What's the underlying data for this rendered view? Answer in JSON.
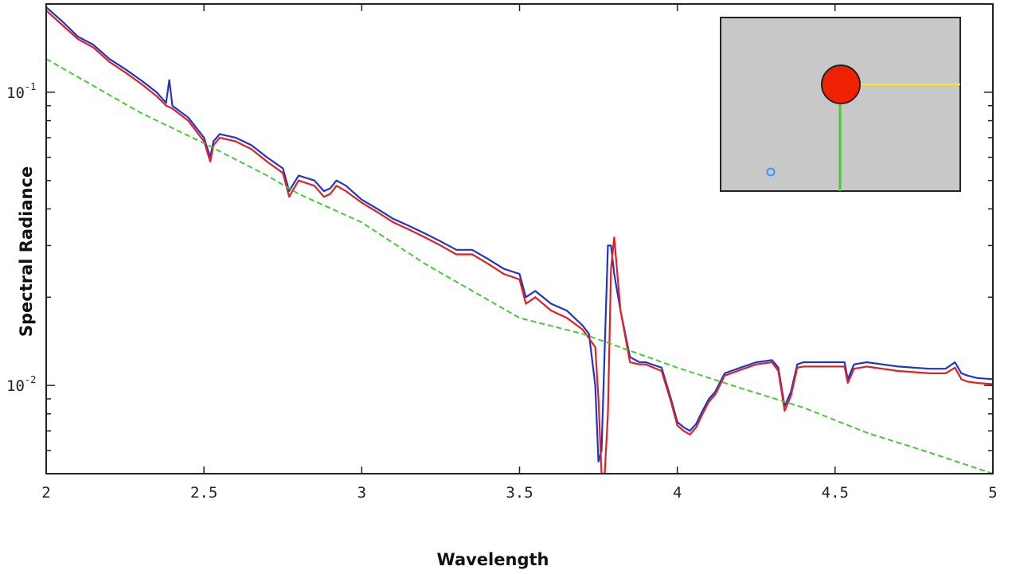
{
  "chart_data": {
    "type": "line",
    "xlabel": "Wavelength",
    "ylabel": "Spectral Radiance",
    "xlim": [
      2,
      5
    ],
    "ylim": [
      0.005,
      0.2
    ],
    "yscale": "log",
    "grid": false,
    "x_ticks": [
      "2",
      "2.5",
      "3",
      "3.5",
      "4",
      "4.5",
      "5"
    ],
    "y_ticks": [
      {
        "value": 0.1,
        "base": "10",
        "exp": "-1"
      },
      {
        "value": 0.01,
        "base": "10",
        "exp": "-2"
      }
    ],
    "series": [
      {
        "color": "#2233cc",
        "style": "solid",
        "x": [
          2.0,
          2.05,
          2.1,
          2.15,
          2.2,
          2.25,
          2.3,
          2.35,
          2.38,
          2.39,
          2.4,
          2.45,
          2.5,
          2.52,
          2.53,
          2.55,
          2.6,
          2.65,
          2.7,
          2.75,
          2.77,
          2.78,
          2.8,
          2.85,
          2.88,
          2.9,
          2.92,
          2.95,
          3.0,
          3.05,
          3.1,
          3.15,
          3.2,
          3.25,
          3.3,
          3.35,
          3.4,
          3.45,
          3.5,
          3.52,
          3.55,
          3.6,
          3.65,
          3.7,
          3.72,
          3.74,
          3.75,
          3.76,
          3.78,
          3.79,
          3.8,
          3.82,
          3.85,
          3.88,
          3.9,
          3.95,
          3.98,
          4.0,
          4.02,
          4.04,
          4.06,
          4.08,
          4.1,
          4.12,
          4.15,
          4.2,
          4.25,
          4.3,
          4.32,
          4.34,
          4.36,
          4.38,
          4.4,
          4.45,
          4.5,
          4.53,
          4.54,
          4.56,
          4.6,
          4.65,
          4.7,
          4.75,
          4.8,
          4.85,
          4.88,
          4.9,
          4.92,
          4.95,
          5.0
        ],
        "y": [
          0.195,
          0.175,
          0.155,
          0.145,
          0.13,
          0.12,
          0.11,
          0.1,
          0.092,
          0.11,
          0.09,
          0.082,
          0.07,
          0.06,
          0.068,
          0.072,
          0.07,
          0.066,
          0.06,
          0.055,
          0.046,
          0.048,
          0.052,
          0.05,
          0.046,
          0.047,
          0.05,
          0.048,
          0.043,
          0.04,
          0.037,
          0.035,
          0.033,
          0.031,
          0.029,
          0.029,
          0.027,
          0.025,
          0.024,
          0.02,
          0.021,
          0.019,
          0.018,
          0.016,
          0.015,
          0.01,
          0.0055,
          0.006,
          0.03,
          0.03,
          0.024,
          0.018,
          0.0125,
          0.012,
          0.012,
          0.0115,
          0.009,
          0.0075,
          0.0072,
          0.007,
          0.0074,
          0.0082,
          0.009,
          0.0095,
          0.011,
          0.0115,
          0.012,
          0.0122,
          0.0115,
          0.0085,
          0.0095,
          0.0118,
          0.012,
          0.012,
          0.012,
          0.012,
          0.0105,
          0.0118,
          0.012,
          0.0118,
          0.0116,
          0.0115,
          0.0114,
          0.0114,
          0.012,
          0.011,
          0.0108,
          0.0106,
          0.0105
        ]
      },
      {
        "color": "#dd2222",
        "style": "solid",
        "x": [
          2.0,
          2.05,
          2.1,
          2.15,
          2.2,
          2.25,
          2.3,
          2.35,
          2.38,
          2.4,
          2.45,
          2.5,
          2.52,
          2.53,
          2.55,
          2.6,
          2.65,
          2.7,
          2.75,
          2.77,
          2.78,
          2.8,
          2.85,
          2.88,
          2.9,
          2.92,
          2.95,
          3.0,
          3.05,
          3.1,
          3.15,
          3.2,
          3.25,
          3.3,
          3.35,
          3.4,
          3.45,
          3.5,
          3.52,
          3.55,
          3.6,
          3.65,
          3.7,
          3.72,
          3.74,
          3.75,
          3.76,
          3.77,
          3.78,
          3.79,
          3.8,
          3.82,
          3.85,
          3.88,
          3.9,
          3.95,
          3.98,
          4.0,
          4.02,
          4.04,
          4.06,
          4.08,
          4.1,
          4.12,
          4.15,
          4.2,
          4.25,
          4.3,
          4.32,
          4.34,
          4.36,
          4.38,
          4.4,
          4.45,
          4.5,
          4.53,
          4.54,
          4.56,
          4.6,
          4.65,
          4.7,
          4.75,
          4.8,
          4.85,
          4.88,
          4.9,
          4.92,
          4.95,
          5.0
        ],
        "y": [
          0.19,
          0.17,
          0.152,
          0.142,
          0.127,
          0.117,
          0.107,
          0.097,
          0.09,
          0.088,
          0.08,
          0.068,
          0.058,
          0.066,
          0.07,
          0.068,
          0.064,
          0.058,
          0.053,
          0.044,
          0.046,
          0.05,
          0.048,
          0.044,
          0.045,
          0.048,
          0.046,
          0.042,
          0.039,
          0.036,
          0.034,
          0.032,
          0.03,
          0.028,
          0.028,
          0.026,
          0.024,
          0.023,
          0.019,
          0.02,
          0.018,
          0.017,
          0.0155,
          0.0145,
          0.0135,
          0.009,
          0.005,
          0.005,
          0.008,
          0.025,
          0.032,
          0.018,
          0.012,
          0.0118,
          0.0118,
          0.0112,
          0.0088,
          0.0073,
          0.007,
          0.0068,
          0.0072,
          0.008,
          0.0088,
          0.0093,
          0.0108,
          0.0113,
          0.0118,
          0.012,
          0.0112,
          0.0082,
          0.0092,
          0.0115,
          0.0116,
          0.0116,
          0.0116,
          0.0116,
          0.0102,
          0.0114,
          0.0116,
          0.0114,
          0.0112,
          0.0111,
          0.011,
          0.011,
          0.0115,
          0.0105,
          0.0103,
          0.0102,
          0.0101
        ]
      },
      {
        "color": "#44cc33",
        "style": "dashed",
        "x": [
          2.0,
          2.3,
          2.5,
          2.7,
          2.8,
          3.0,
          3.2,
          3.5,
          3.7,
          4.0,
          4.2,
          4.4,
          4.6,
          4.8,
          5.0
        ],
        "y": [
          0.13,
          0.085,
          0.067,
          0.052,
          0.045,
          0.036,
          0.026,
          0.017,
          0.015,
          0.0115,
          0.0098,
          0.0084,
          0.0069,
          0.0059,
          0.005
        ]
      }
    ],
    "inset": {
      "background": "#c8c8c8",
      "sun_color": "#ee2200",
      "ray_colors": [
        "#ffee00",
        "#44cc33"
      ],
      "observer_color": "#3399ff"
    }
  }
}
